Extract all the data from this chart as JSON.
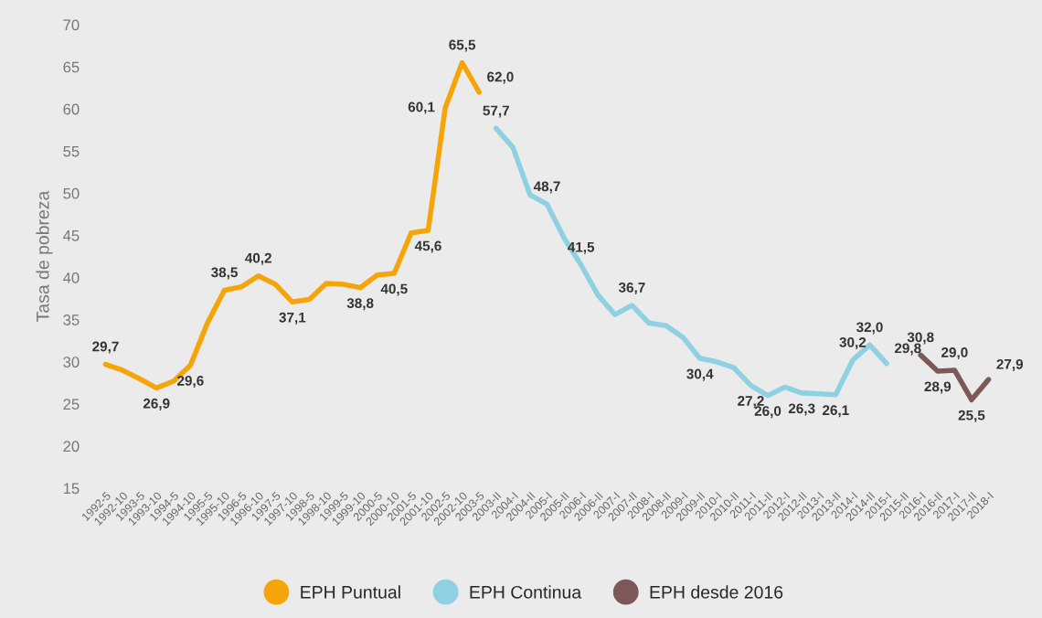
{
  "chart_data": {
    "type": "line",
    "ylabel": "Tasa de pobreza",
    "categories": [
      "1992-5",
      "1992-10",
      "1993-5",
      "1993-10",
      "1994-5",
      "1994-10",
      "1995-5",
      "1995-10",
      "1996-5",
      "1996-10",
      "1997-5",
      "1997-10",
      "1998-5",
      "1998-10",
      "1999-5",
      "1999-10",
      "2000-5",
      "2000-10",
      "2001-5",
      "2001-10",
      "2002-5",
      "2002-10",
      "2003-5",
      "2003-II",
      "2004-I",
      "2004-II",
      "2005-I",
      "2005-II",
      "2006-I",
      "2006-II",
      "2007-I",
      "2007-II",
      "2008-I",
      "2008-II",
      "2009-I",
      "2009-II",
      "2010-I",
      "2010-II",
      "2011-I",
      "2011-II",
      "2012-I",
      "2012-II",
      "2013-I",
      "2013-II",
      "2014-I",
      "2014-II",
      "2015-I",
      "2015-II",
      "2016-I",
      "2016-II",
      "2017-I",
      "2017-II",
      "2018-I"
    ],
    "series": [
      {
        "name": "EPH Puntual",
        "color": "#f5a50a",
        "values": [
          29.7,
          29.0,
          28.0,
          26.9,
          27.7,
          29.6,
          34.6,
          38.5,
          38.9,
          40.2,
          39.2,
          37.1,
          37.4,
          39.3,
          39.2,
          38.8,
          40.3,
          40.5,
          45.3,
          45.6,
          60.1,
          65.5,
          62.0,
          null,
          null,
          null,
          null,
          null,
          null,
          null,
          null,
          null,
          null,
          null,
          null,
          null,
          null,
          null,
          null,
          null,
          null,
          null,
          null,
          null,
          null,
          null,
          null,
          null,
          null,
          null,
          null,
          null,
          null
        ],
        "value_labels": [
          "29,7",
          null,
          null,
          "26,9",
          null,
          "29,6",
          null,
          "38,5",
          null,
          "40,2",
          null,
          "37,1",
          null,
          null,
          null,
          "38,8",
          null,
          "40,5",
          null,
          "45,6",
          "60,1",
          "65,5",
          "62,0",
          null,
          null,
          null,
          null,
          null,
          null,
          null,
          null,
          null,
          null,
          null,
          null,
          null,
          null,
          null,
          null,
          null,
          null,
          null,
          null,
          null,
          null,
          null,
          null,
          null,
          null,
          null,
          null,
          null,
          null
        ]
      },
      {
        "name": "EPH Continua",
        "color": "#8fd0e2",
        "values": [
          null,
          null,
          null,
          null,
          null,
          null,
          null,
          null,
          null,
          null,
          null,
          null,
          null,
          null,
          null,
          null,
          null,
          null,
          null,
          null,
          null,
          null,
          null,
          57.7,
          55.4,
          49.8,
          48.7,
          44.7,
          41.5,
          37.9,
          35.6,
          36.7,
          34.6,
          34.3,
          32.9,
          30.4,
          30.0,
          29.3,
          27.2,
          26.0,
          27.0,
          26.3,
          26.2,
          26.1,
          30.2,
          32.0,
          29.8,
          null,
          null,
          null,
          null,
          null,
          null
        ],
        "value_labels": [
          null,
          null,
          null,
          null,
          null,
          null,
          null,
          null,
          null,
          null,
          null,
          null,
          null,
          null,
          null,
          null,
          null,
          null,
          null,
          null,
          null,
          null,
          null,
          "57,7",
          null,
          null,
          "48,7",
          null,
          "41,5",
          null,
          null,
          "36,7",
          null,
          null,
          null,
          "30,4",
          null,
          null,
          "27,2",
          "26,0",
          null,
          "26,3",
          null,
          "26,1",
          "30,2",
          "32,0",
          "29,8",
          null,
          null,
          null,
          null,
          null,
          null
        ]
      },
      {
        "name": "EPH desde 2016",
        "color": "#7d5858",
        "values": [
          null,
          null,
          null,
          null,
          null,
          null,
          null,
          null,
          null,
          null,
          null,
          null,
          null,
          null,
          null,
          null,
          null,
          null,
          null,
          null,
          null,
          null,
          null,
          null,
          null,
          null,
          null,
          null,
          null,
          null,
          null,
          null,
          null,
          null,
          null,
          null,
          null,
          null,
          null,
          null,
          null,
          null,
          null,
          null,
          null,
          null,
          null,
          null,
          30.8,
          28.9,
          29.0,
          25.5,
          27.9
        ],
        "value_labels": [
          null,
          null,
          null,
          null,
          null,
          null,
          null,
          null,
          null,
          null,
          null,
          null,
          null,
          null,
          null,
          null,
          null,
          null,
          null,
          null,
          null,
          null,
          null,
          null,
          null,
          null,
          null,
          null,
          null,
          null,
          null,
          null,
          null,
          null,
          null,
          null,
          null,
          null,
          null,
          null,
          null,
          null,
          null,
          null,
          null,
          null,
          null,
          null,
          "30,8",
          "28,9",
          "29,0",
          "25,5",
          "27,9"
        ]
      }
    ],
    "ylim": [
      15,
      70
    ],
    "yticks": [
      15,
      20,
      25,
      30,
      35,
      40,
      45,
      50,
      55,
      60,
      65,
      70
    ],
    "grid": false,
    "legend": "bottom"
  }
}
